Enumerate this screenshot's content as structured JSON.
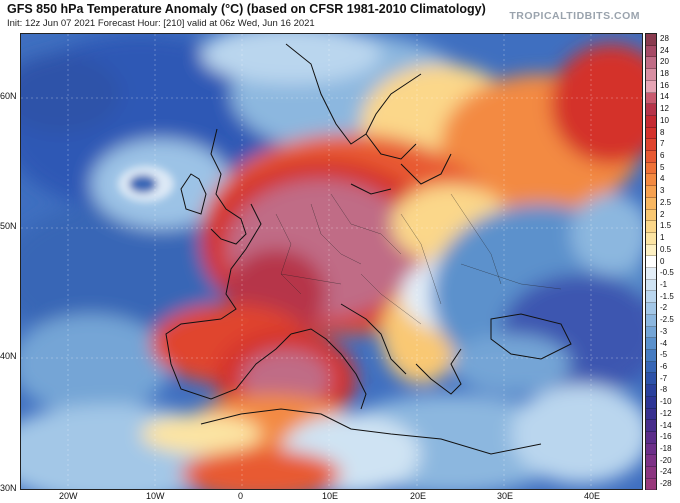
{
  "header": {
    "title": "GFS 850 hPa Temperature Anomaly (°C) (based on CFSR 1981-2010 Climatology)",
    "subtitle": "Init: 12z Jun 07 2021   Forecast Hour: [210]   valid at 06z Wed, Jun 16 2021",
    "brand": "TROPICALTIDBITS.COM"
  },
  "axes": {
    "lat_labels": [
      "60N",
      "50N",
      "40N",
      "30N"
    ],
    "lon_labels": [
      "20W",
      "10W",
      "0",
      "10E",
      "20E",
      "30E",
      "40E"
    ]
  },
  "colorbar": {
    "labels": [
      "28",
      "24",
      "20",
      "18",
      "16",
      "14",
      "12",
      "10",
      "8",
      "7",
      "6",
      "5",
      "4",
      "3",
      "2.5",
      "2",
      "1.5",
      "1",
      "0.5",
      "0",
      "-0.5",
      "-1",
      "-1.5",
      "-2",
      "-2.5",
      "-3",
      "-4",
      "-5",
      "-6",
      "-7",
      "-8",
      "-10",
      "-12",
      "-14",
      "-16",
      "-18",
      "-20",
      "-24",
      "-28"
    ],
    "colors": [
      "#8a3b4f",
      "#a64a66",
      "#c06c86",
      "#d88fa3",
      "#e6a5b5",
      "#c95a6f",
      "#b6344a",
      "#c52a32",
      "#d4322c",
      "#e0452f",
      "#e85a33",
      "#ef7238",
      "#f38a42",
      "#f6a150",
      "#f8b761",
      "#f9c873",
      "#fbd78a",
      "#fce4a3",
      "#fdf0c3",
      "#ffffff",
      "#e3eef8",
      "#cfe3f3",
      "#bad6ee",
      "#a3c7e7",
      "#8cb7df",
      "#74a5d6",
      "#5b91cc",
      "#467cc2",
      "#3766b6",
      "#2d52a9",
      "#2a409c",
      "#2d3595",
      "#38308f",
      "#482e8c",
      "#5b2d8a",
      "#6c2f89",
      "#7d3286",
      "#8b3580",
      "#98397b"
    ]
  },
  "map": {
    "region": "Europe and North Atlantic",
    "projection": "lat-lon",
    "colors": {
      "ocean_cold": "#2f5fb8",
      "atlantic_mid": "#5b91cc",
      "neutral": "#fdf0c3",
      "warm": "#f38a42",
      "hot": "#c52a32",
      "very_hot": "#c06c86",
      "russia_cold": "#3d56b0",
      "ne_warm": "#e0452f"
    }
  }
}
